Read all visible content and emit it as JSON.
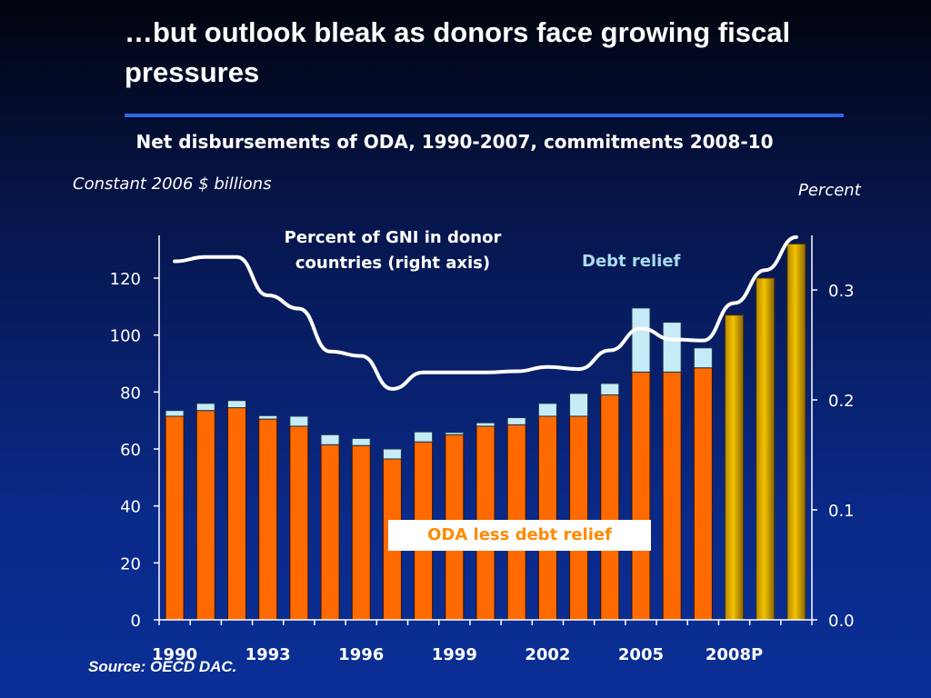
{
  "slide": {
    "title": "…but outlook bleak as donors face growing fiscal pressures",
    "source": "Source: OECD DAC."
  },
  "colors": {
    "oda": "#ff6a00",
    "debt_relief": "#c6ecf7",
    "projection": "#f2c200",
    "gni_line": "#ffffff",
    "rule": "#2f66e8"
  },
  "chart_data": {
    "type": "bar",
    "title": "Net disbursements of ODA, 1990-2007, commitments 2008-10",
    "ylabel": "Constant 2006 $ billions",
    "y2label": "Percent",
    "ylim": [
      0,
      130
    ],
    "y2lim": [
      0,
      0.35
    ],
    "yticks": [
      0,
      20,
      40,
      60,
      80,
      100,
      120
    ],
    "y2ticks": [
      "0.0",
      "0.1",
      "0.2",
      "0.3"
    ],
    "xtick_labels": [
      "1990",
      "1993",
      "1996",
      "1999",
      "2002",
      "2005",
      "2008P"
    ],
    "categories": [
      "1990",
      "1991",
      "1992",
      "1993",
      "1994",
      "1995",
      "1996",
      "1997",
      "1998",
      "1999",
      "2000",
      "2001",
      "2002",
      "2003",
      "2004",
      "2005",
      "2006",
      "2007",
      "2008P",
      "2009P",
      "2010P"
    ],
    "series": [
      {
        "name": "ODA less debt relief",
        "values": [
          71.5,
          73.5,
          74.5,
          70.5,
          68,
          61.5,
          61.2,
          56.5,
          62.5,
          65,
          68,
          68.5,
          71.5,
          71.5,
          79,
          87,
          87,
          88.5,
          null,
          null,
          null
        ]
      },
      {
        "name": "Debt relief",
        "values": [
          2,
          2.5,
          2.5,
          1.2,
          3.5,
          3.5,
          2.5,
          3.5,
          3.5,
          0.8,
          1.2,
          2.5,
          4.5,
          8,
          4,
          22.5,
          17.5,
          7,
          null,
          null,
          null
        ]
      },
      {
        "name": "Commitments",
        "values": [
          null,
          null,
          null,
          null,
          null,
          null,
          null,
          null,
          null,
          null,
          null,
          null,
          null,
          null,
          null,
          null,
          null,
          null,
          107,
          120,
          132
        ]
      }
    ],
    "line_series": {
      "name": "Percent of GNI in donor countries (right axis)",
      "axis": "right",
      "values": [
        0.326,
        0.33,
        0.33,
        0.295,
        0.283,
        0.244,
        0.24,
        0.21,
        0.225,
        0.225,
        0.225,
        0.226,
        0.23,
        0.228,
        0.245,
        0.265,
        0.255,
        0.254,
        0.288,
        0.318,
        0.348
      ]
    },
    "annotations": {
      "gni": "Percent of GNI in donor countries (right axis)",
      "debt_relief": "Debt relief",
      "oda": "ODA less debt relief"
    },
    "grid": false,
    "legend": "none (in-chart labels)"
  }
}
